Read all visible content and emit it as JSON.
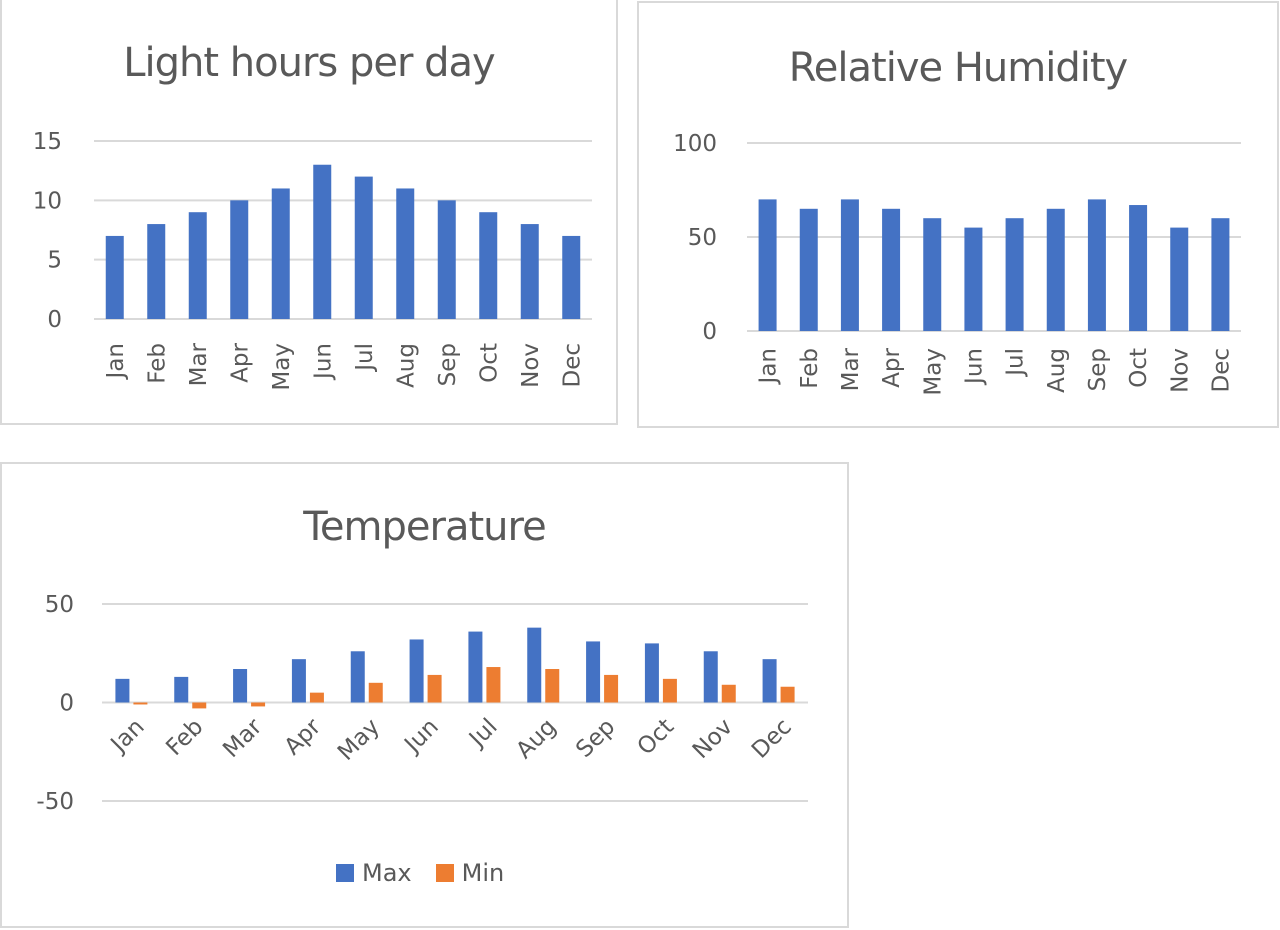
{
  "chart_data": [
    {
      "type": "bar",
      "title": "Light hours per day",
      "categories": [
        "Jan",
        "Feb",
        "Mar",
        "Apr",
        "May",
        "Jun",
        "Jul",
        "Aug",
        "Sep",
        "Oct",
        "Nov",
        "Dec"
      ],
      "series": [
        {
          "name": "Light hours",
          "values": [
            7,
            8,
            9,
            10,
            11,
            13,
            12,
            11,
            10,
            9,
            8,
            7
          ],
          "color": "#4472C4"
        }
      ],
      "xlabel": "",
      "ylabel": "",
      "ylim": [
        0,
        15
      ],
      "yticks": [
        0,
        5,
        10,
        15
      ],
      "grid": true,
      "legend": null,
      "xtick_rotation": -90
    },
    {
      "type": "bar",
      "title": "Relative Humidity",
      "categories": [
        "Jan",
        "Feb",
        "Mar",
        "Apr",
        "May",
        "Jun",
        "Jul",
        "Aug",
        "Sep",
        "Oct",
        "Nov",
        "Dec"
      ],
      "series": [
        {
          "name": "Relative Humidity",
          "values": [
            70,
            65,
            70,
            65,
            60,
            55,
            60,
            65,
            70,
            67,
            55,
            60
          ],
          "color": "#4472C4"
        }
      ],
      "xlabel": "",
      "ylabel": "",
      "ylim": [
        0,
        100
      ],
      "yticks": [
        0,
        50,
        100
      ],
      "grid": true,
      "legend": null,
      "xtick_rotation": -90
    },
    {
      "type": "bar",
      "title": "Temperature",
      "categories": [
        "Jan",
        "Feb",
        "Mar",
        "Apr",
        "May",
        "Jun",
        "Jul",
        "Aug",
        "Sep",
        "Oct",
        "Nov",
        "Dec"
      ],
      "series": [
        {
          "name": "Max",
          "values": [
            12,
            13,
            17,
            22,
            26,
            32,
            36,
            38,
            31,
            30,
            26,
            22
          ],
          "color": "#4472C4"
        },
        {
          "name": "Min",
          "values": [
            -1,
            -3,
            -2,
            5,
            10,
            14,
            18,
            17,
            14,
            12,
            9,
            8
          ],
          "color": "#ED7D31"
        }
      ],
      "xlabel": "",
      "ylabel": "",
      "ylim": [
        -50,
        50
      ],
      "yticks": [
        -50,
        0,
        50
      ],
      "grid": true,
      "legend": "bottom",
      "xtick_rotation": -45
    }
  ],
  "charts": {
    "light": {
      "title": "Light hours per day"
    },
    "humidity": {
      "title": "Relative Humidity"
    },
    "temperature": {
      "title": "Temperature",
      "legend": [
        {
          "label": "Max",
          "color": "#4472C4"
        },
        {
          "label": "Min",
          "color": "#ED7D31"
        }
      ]
    }
  },
  "colors": {
    "bar_primary": "#4472C4",
    "bar_secondary": "#ED7D31",
    "gridline": "#d9d9d9",
    "text": "#595959",
    "border": "#d9d9d9"
  }
}
